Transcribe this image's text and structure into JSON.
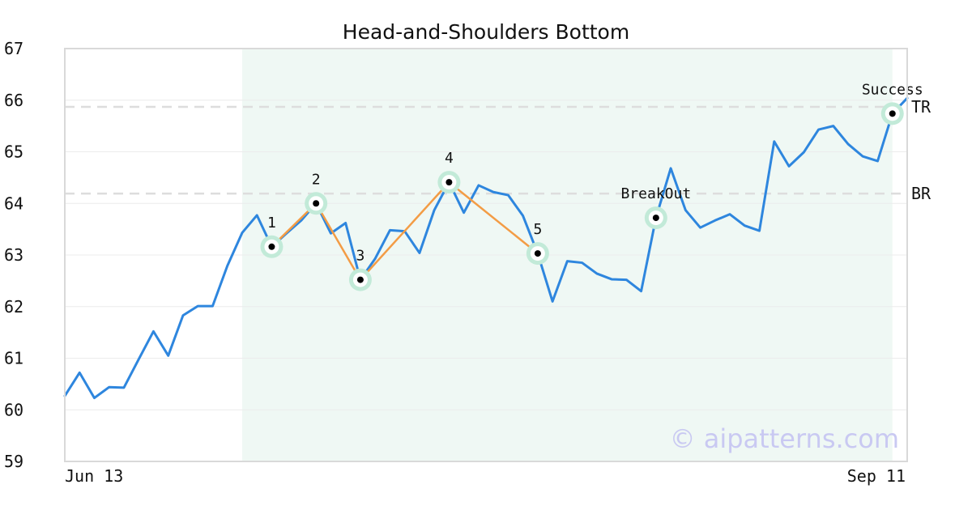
{
  "chart_data": {
    "type": "line",
    "title": "Head-and-Shoulders Bottom",
    "xlabel": "",
    "ylabel": "",
    "ylim": [
      59,
      67
    ],
    "yticks": [
      59,
      60,
      61,
      62,
      63,
      64,
      65,
      66,
      67
    ],
    "xtick_labels": {
      "start": "Jun 13",
      "end": "Sep 11"
    },
    "grid": true,
    "watermark": "© aipatterns.com",
    "colors": {
      "price_line": "#2e86de",
      "pattern_line": "#f39c45",
      "highlight_band": "#eff8f4",
      "marker_halo": "#c2ead8",
      "level_line": "#dddddd"
    },
    "series": [
      {
        "values": [
          60.27,
          60.72,
          60.23,
          60.44,
          60.43,
          60.98,
          61.52,
          61.05,
          61.83,
          62.01,
          62.01,
          62.79,
          63.43,
          63.77,
          63.16,
          63.42,
          63.67,
          64.0,
          63.42,
          63.62,
          62.52,
          62.93,
          63.48,
          63.46,
          63.04,
          63.87,
          64.41,
          63.82,
          64.35,
          64.22,
          64.16,
          63.76,
          63.03,
          62.1,
          62.88,
          62.85,
          62.64,
          62.53,
          62.52,
          62.3,
          63.72,
          64.68,
          63.87,
          63.53,
          63.67,
          63.79,
          63.57,
          63.47,
          65.2,
          64.72,
          64.99,
          65.43,
          65.5,
          65.15,
          64.91,
          64.82,
          65.74,
          66.04
        ]
      }
    ],
    "highlight_range": {
      "start": 12,
      "end": 56
    },
    "levels": [
      {
        "label": "TR",
        "value": 65.87
      },
      {
        "label": "BR",
        "value": 64.19
      }
    ],
    "pattern_points": [
      {
        "label": "1",
        "index": 14,
        "value": 63.16
      },
      {
        "label": "2",
        "index": 17,
        "value": 64.0
      },
      {
        "label": "3",
        "index": 20,
        "value": 62.52
      },
      {
        "label": "4",
        "index": 26,
        "value": 64.41
      },
      {
        "label": "5",
        "index": 32,
        "value": 63.03
      }
    ],
    "events": [
      {
        "label": "BreakOut",
        "index": 40,
        "value": 63.72
      },
      {
        "label": "Success",
        "index": 56,
        "value": 65.74
      }
    ]
  }
}
